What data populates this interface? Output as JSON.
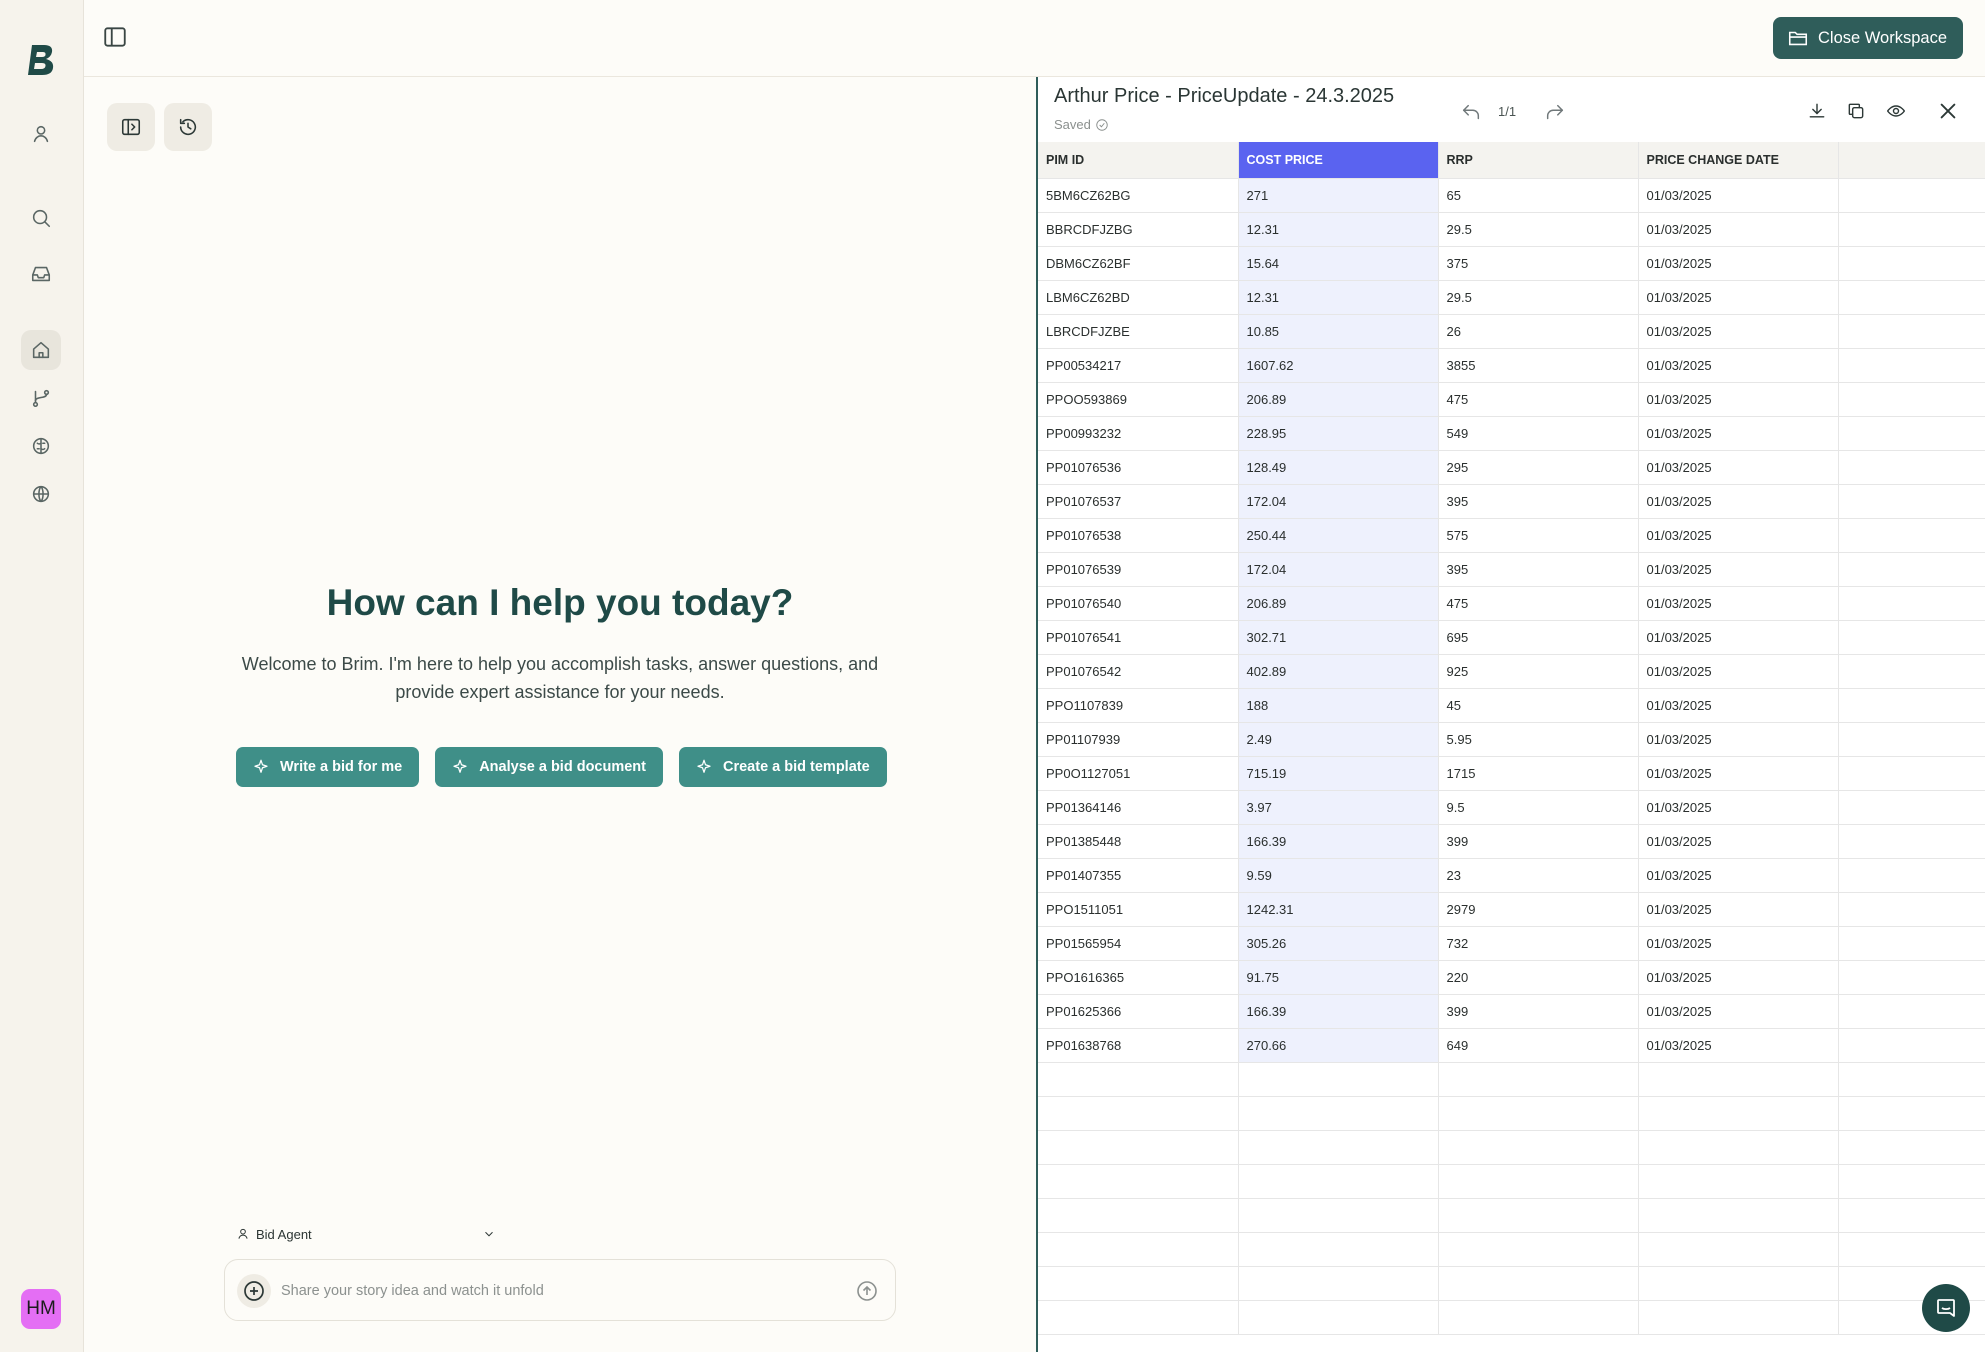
{
  "rail": {
    "avatar_initials": "HM",
    "items": [
      "user-icon",
      "search-icon",
      "inbox-icon",
      "home-icon",
      "branch-icon",
      "brain-icon",
      "globe-icon"
    ]
  },
  "topbar": {
    "close_workspace_label": "Close Workspace"
  },
  "chat": {
    "title": "How can I help you today?",
    "subtitle": "Welcome to Brim. I'm here to help you accomplish tasks, answer questions, and provide expert assistance for your needs.",
    "chips": [
      {
        "label": "Write a bid for me"
      },
      {
        "label": "Analyse a bid document"
      },
      {
        "label": "Create a bid template"
      }
    ],
    "agent_label": "Bid Agent",
    "composer_placeholder": "Share your story idea and watch it unfold"
  },
  "sheet": {
    "title": "Arthur Price - PriceUpdate - 24.3.2025",
    "status": "Saved",
    "pager": "1/1",
    "columns": [
      "PIM ID",
      "COST PRICE",
      "RRP",
      "PRICE CHANGE DATE",
      ""
    ],
    "rows": [
      [
        "5BM6CZ62BG",
        "271",
        "65",
        "01/03/2025"
      ],
      [
        "BBRCDFJZBG",
        "12.31",
        "29.5",
        "01/03/2025"
      ],
      [
        "DBM6CZ62BF",
        "15.64",
        "375",
        "01/03/2025"
      ],
      [
        "LBM6CZ62BD",
        "12.31",
        "29.5",
        "01/03/2025"
      ],
      [
        "LBRCDFJZBE",
        "10.85",
        "26",
        "01/03/2025"
      ],
      [
        "PP00534217",
        "1607.62",
        "3855",
        "01/03/2025"
      ],
      [
        "PPOO593869",
        "206.89",
        "475",
        "01/03/2025"
      ],
      [
        "PP00993232",
        "228.95",
        "549",
        "01/03/2025"
      ],
      [
        "PP01076536",
        "128.49",
        "295",
        "01/03/2025"
      ],
      [
        "PP01076537",
        "172.04",
        "395",
        "01/03/2025"
      ],
      [
        "PP01076538",
        "250.44",
        "575",
        "01/03/2025"
      ],
      [
        "PP01076539",
        "172.04",
        "395",
        "01/03/2025"
      ],
      [
        "PP01076540",
        "206.89",
        "475",
        "01/03/2025"
      ],
      [
        "PP01076541",
        "302.71",
        "695",
        "01/03/2025"
      ],
      [
        "PP01076542",
        "402.89",
        "925",
        "01/03/2025"
      ],
      [
        "PPO1107839",
        "188",
        "45",
        "01/03/2025"
      ],
      [
        "PP01107939",
        "2.49",
        "5.95",
        "01/03/2025"
      ],
      [
        "PP0O1127051",
        "715.19",
        "1715",
        "01/03/2025"
      ],
      [
        "PP01364146",
        "3.97",
        "9.5",
        "01/03/2025"
      ],
      [
        "PP01385448",
        "166.39",
        "399",
        "01/03/2025"
      ],
      [
        "PP01407355",
        "9.59",
        "23",
        "01/03/2025"
      ],
      [
        "PPO1511051",
        "1242.31",
        "2979",
        "01/03/2025"
      ],
      [
        "PP01565954",
        "305.26",
        "732",
        "01/03/2025"
      ],
      [
        "PPO1616365",
        "91.75",
        "220",
        "01/03/2025"
      ],
      [
        "PP01625366",
        "166.39",
        "399",
        "01/03/2025"
      ],
      [
        "PP01638768",
        "270.66",
        "649",
        "01/03/2025"
      ]
    ],
    "empty_rows": 8,
    "selected_column": 1
  },
  "colors": {
    "accent": "#2f5d5a",
    "chip": "#3f8f88",
    "selected_header": "#5a63f0",
    "avatar": "#e46ef4"
  }
}
